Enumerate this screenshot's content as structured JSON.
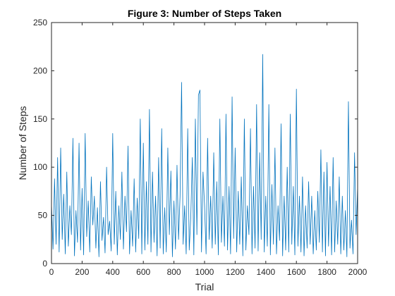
{
  "chart_data": {
    "type": "line",
    "title": "Figure 3: Number of Steps Taken",
    "xlabel": "Trial",
    "ylabel": "Number of Steps",
    "xlim": [
      0,
      2000
    ],
    "ylim": [
      0,
      250
    ],
    "xticks": [
      0,
      200,
      400,
      600,
      800,
      1000,
      1200,
      1400,
      1600,
      1800,
      2000
    ],
    "yticks": [
      0,
      50,
      100,
      150,
      200,
      250
    ],
    "grid": false,
    "line_color": "#0072BD",
    "series": [
      {
        "name": "",
        "x": [
          0,
          10,
          20,
          30,
          40,
          50,
          60,
          70,
          80,
          90,
          100,
          110,
          120,
          130,
          140,
          150,
          160,
          170,
          180,
          190,
          200,
          210,
          220,
          230,
          240,
          250,
          260,
          270,
          280,
          290,
          300,
          310,
          320,
          330,
          340,
          350,
          360,
          370,
          380,
          390,
          400,
          410,
          420,
          430,
          440,
          450,
          460,
          470,
          480,
          490,
          500,
          510,
          520,
          530,
          540,
          550,
          560,
          570,
          580,
          590,
          600,
          610,
          620,
          630,
          640,
          650,
          660,
          670,
          680,
          690,
          700,
          710,
          720,
          730,
          740,
          750,
          760,
          770,
          780,
          790,
          800,
          810,
          820,
          830,
          840,
          850,
          860,
          870,
          880,
          890,
          900,
          910,
          920,
          930,
          940,
          950,
          960,
          970,
          980,
          990,
          1000,
          1010,
          1020,
          1030,
          1040,
          1050,
          1060,
          1070,
          1080,
          1090,
          1100,
          1110,
          1120,
          1130,
          1140,
          1150,
          1160,
          1170,
          1180,
          1190,
          1200,
          1210,
          1220,
          1230,
          1240,
          1250,
          1260,
          1270,
          1280,
          1290,
          1300,
          1310,
          1320,
          1330,
          1340,
          1350,
          1360,
          1370,
          1380,
          1390,
          1400,
          1410,
          1420,
          1430,
          1440,
          1450,
          1460,
          1470,
          1480,
          1490,
          1500,
          1510,
          1520,
          1530,
          1540,
          1550,
          1560,
          1570,
          1580,
          1590,
          1600,
          1610,
          1620,
          1630,
          1640,
          1650,
          1660,
          1670,
          1680,
          1690,
          1700,
          1710,
          1720,
          1730,
          1740,
          1750,
          1760,
          1770,
          1780,
          1790,
          1800,
          1810,
          1820,
          1830,
          1840,
          1850,
          1860,
          1870,
          1880,
          1890,
          1900,
          1910,
          1920,
          1930,
          1940,
          1950,
          1960,
          1970,
          1980,
          1990,
          2000
        ],
        "y": [
          62,
          15,
          88,
          20,
          110,
          12,
          120,
          25,
          72,
          10,
          95,
          18,
          60,
          30,
          130,
          8,
          55,
          22,
          125,
          14,
          78,
          9,
          135,
          28,
          65,
          12,
          90,
          40,
          70,
          16,
          58,
          7,
          85,
          24,
          48,
          11,
          100,
          30,
          44,
          13,
          135,
          20,
          75,
          9,
          60,
          25,
          95,
          15,
          70,
          33,
          122,
          10,
          55,
          18,
          88,
          12,
          68,
          26,
          150,
          10,
          125,
          14,
          85,
          20,
          160,
          12,
          95,
          22,
          70,
          8,
          110,
          16,
          140,
          10,
          58,
          12,
          120,
          30,
          96,
          7,
          65,
          15,
          102,
          25,
          70,
          188,
          20,
          60,
          10,
          140,
          14,
          48,
          110,
          9,
          150,
          30,
          175,
          180,
          12,
          95,
          60,
          10,
          130,
          25,
          70,
          16,
          115,
          20,
          85,
          9,
          150,
          22,
          70,
          18,
          155,
          14,
          80,
          10,
          173,
          26,
          120,
          12,
          75,
          20,
          90,
          8,
          150,
          14,
          60,
          30,
          140,
          10,
          80,
          16,
          165,
          13,
          115,
          25,
          217,
          12,
          70,
          18,
          165,
          9,
          82,
          20,
          120,
          10,
          60,
          24,
          145,
          8,
          70,
          14,
          100,
          12,
          155,
          20,
          80,
          9,
          181,
          18,
          70,
          12,
          90,
          8,
          60,
          16,
          85,
          20,
          70,
          10,
          55,
          14,
          75,
          22,
          118,
          12,
          95,
          8,
          105,
          18,
          80,
          9,
          110,
          12,
          65,
          20,
          90,
          10,
          70,
          14,
          55,
          7,
          168,
          16,
          45,
          10,
          115,
          30,
          80
        ]
      }
    ]
  }
}
